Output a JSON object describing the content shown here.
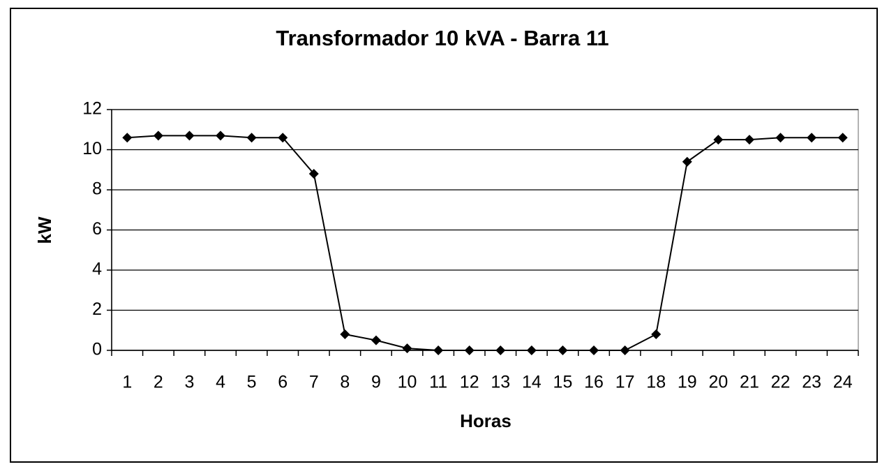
{
  "chart_data": {
    "type": "line",
    "title": "Transformador 10 kVA - Barra 11",
    "x_label": "Horas",
    "y_label": "kW",
    "categories": [
      "1",
      "2",
      "3",
      "4",
      "5",
      "6",
      "7",
      "8",
      "9",
      "10",
      "11",
      "12",
      "13",
      "14",
      "15",
      "16",
      "17",
      "18",
      "19",
      "20",
      "21",
      "22",
      "23",
      "24"
    ],
    "series": [
      {
        "name": "kW",
        "color": "#000000",
        "values": [
          10.6,
          10.7,
          10.7,
          10.7,
          10.6,
          10.6,
          8.8,
          0.8,
          0.5,
          0.1,
          0,
          0,
          0,
          0,
          0,
          0,
          0,
          0.8,
          9.4,
          10.5,
          10.5,
          10.6,
          10.6,
          10.6
        ]
      }
    ],
    "ylim": [
      0,
      12
    ],
    "yticks": [
      0,
      2,
      4,
      6,
      8,
      10,
      12
    ],
    "grid": true
  }
}
